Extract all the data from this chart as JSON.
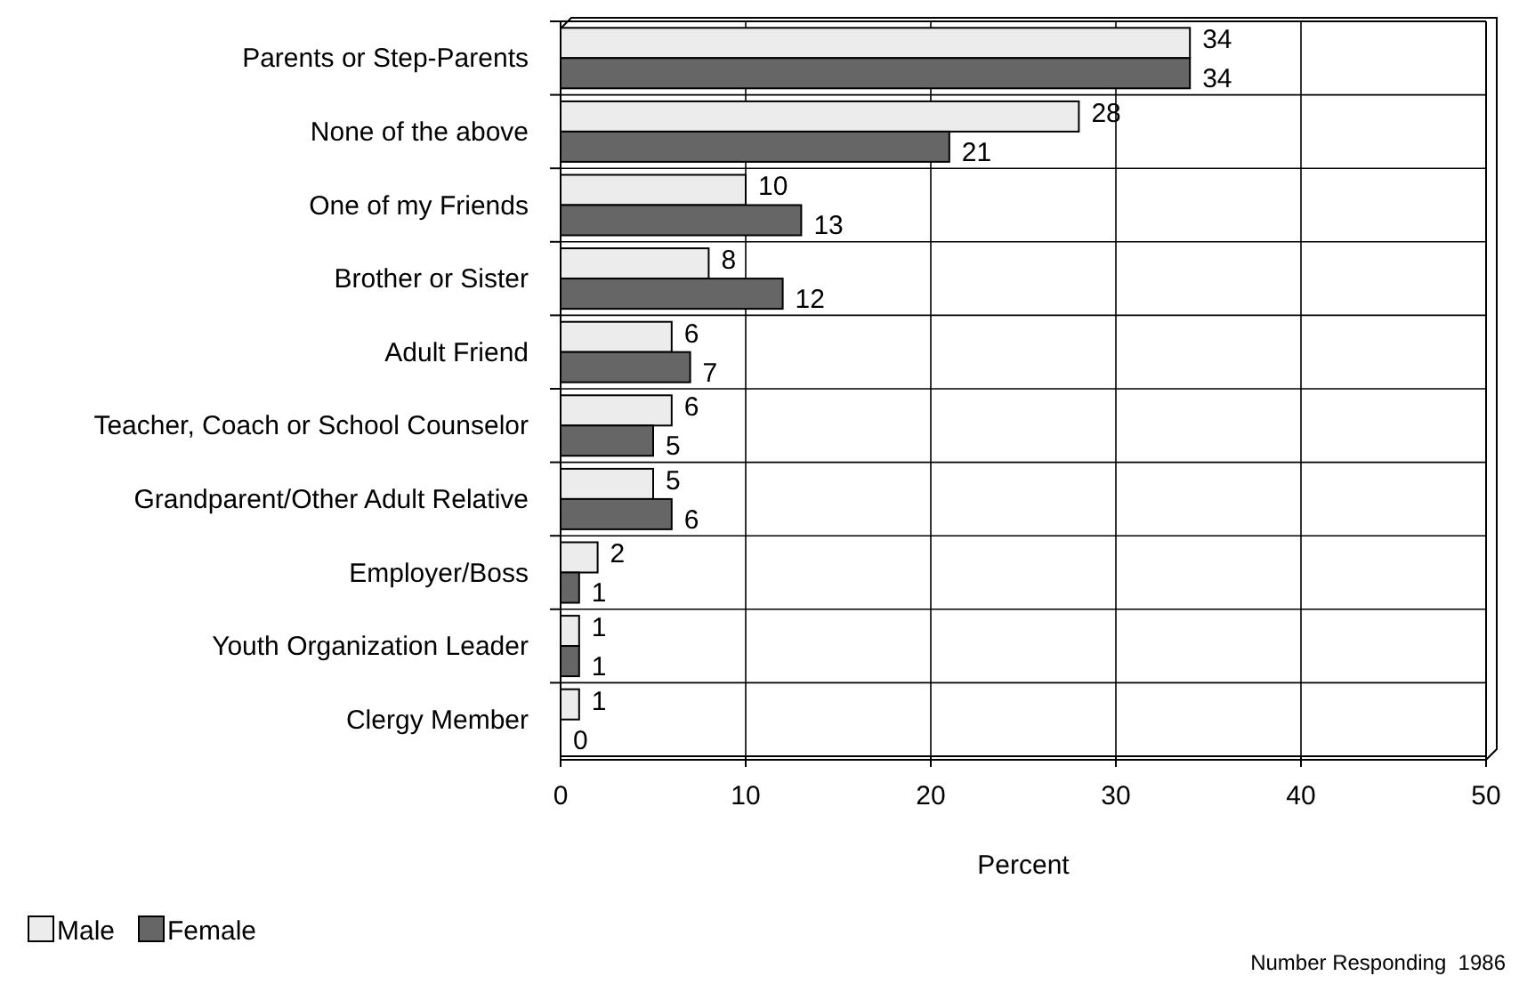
{
  "chart_data": {
    "type": "bar",
    "orientation": "horizontal",
    "xlabel": "Percent",
    "categories": [
      "Parents or Step-Parents",
      "None of the above",
      "One of my Friends",
      "Brother or Sister",
      "Adult Friend",
      "Teacher, Coach or School Counselor",
      "Grandparent/Other Adult Relative",
      "Employer/Boss",
      "Youth Organization Leader",
      "Clergy Member"
    ],
    "series": [
      {
        "name": "Male",
        "color": "#ececec",
        "values": [
          34,
          28,
          10,
          8,
          6,
          6,
          5,
          2,
          1,
          1
        ]
      },
      {
        "name": "Female",
        "color": "#666666",
        "values": [
          34,
          21,
          13,
          12,
          7,
          5,
          6,
          1,
          1,
          0
        ]
      }
    ],
    "xlim": [
      0,
      50
    ],
    "xticks": [
      0,
      10,
      20,
      30,
      40,
      50
    ],
    "grid": true,
    "data_labels": true,
    "legend": "bottom left",
    "annotations": [
      "Number Responding  1986"
    ]
  }
}
